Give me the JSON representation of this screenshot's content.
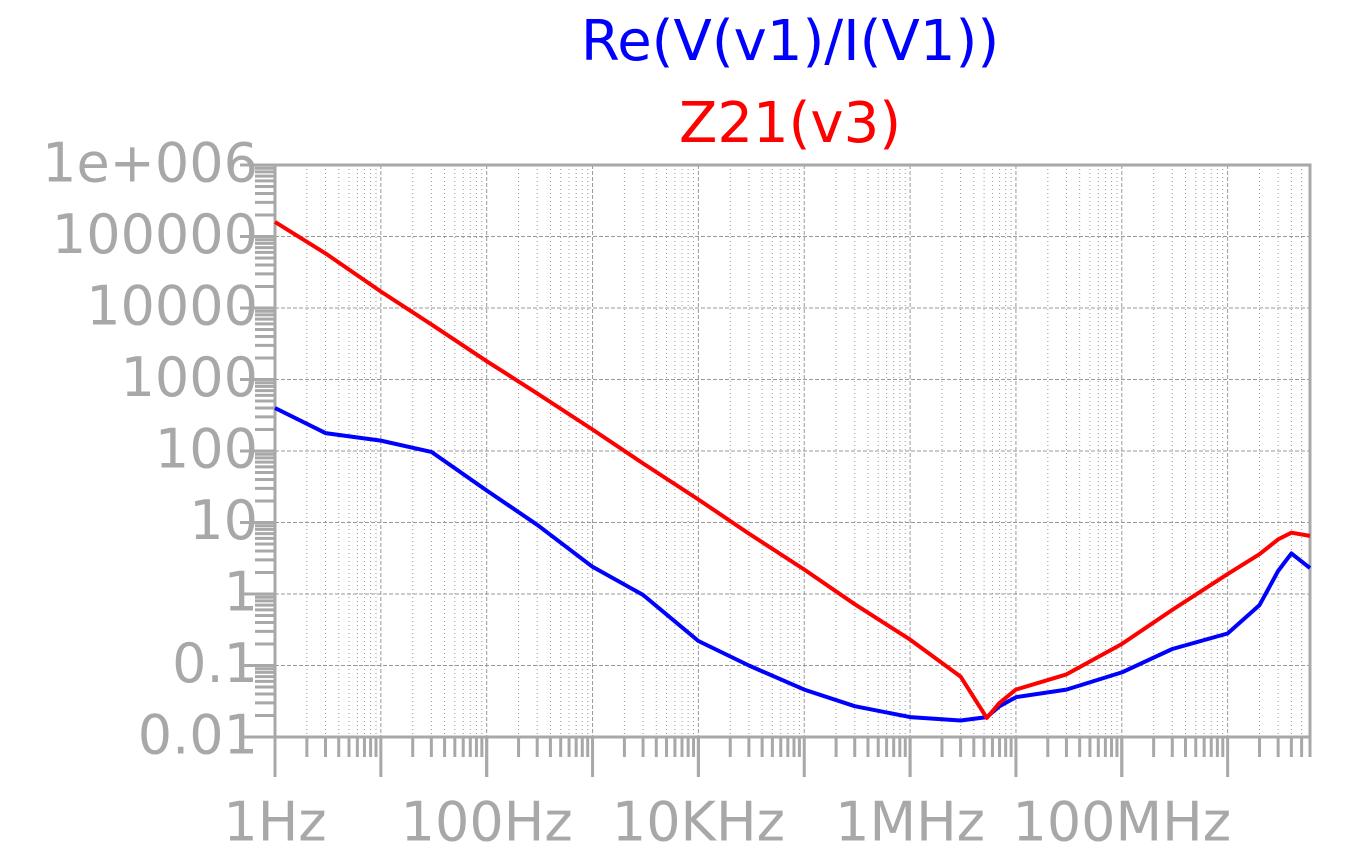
{
  "chart_data": {
    "type": "line",
    "xscale": "log",
    "yscale": "log",
    "grid": true,
    "legend": "top",
    "x": [
      1,
      3,
      10,
      30,
      100,
      300,
      1000,
      3000,
      10000,
      30000,
      100000,
      300000,
      1000000,
      3000000,
      5300000,
      7000000,
      10000000,
      30000000,
      100000000,
      300000000,
      1000000000,
      2000000000,
      3000000000,
      4000000000,
      6000000000
    ],
    "series": [
      {
        "name": "Re(V(v1)/I(V1))",
        "color": "#0000ff",
        "values": [
          400,
          178,
          140,
          97,
          28,
          9.3,
          2.4,
          0.97,
          0.22,
          0.1,
          0.046,
          0.027,
          0.019,
          0.017,
          0.019,
          0.027,
          0.036,
          0.046,
          0.08,
          0.17,
          0.28,
          0.7,
          2.1,
          3.7,
          2.3
        ]
      },
      {
        "name": "Z21(v3)",
        "color": "#ff0000",
        "values": [
          160000,
          58000,
          17000,
          5900,
          1800,
          640,
          200,
          67,
          21,
          7,
          2.2,
          0.72,
          0.23,
          0.07,
          0.0185,
          0.03,
          0.046,
          0.075,
          0.2,
          0.6,
          1.9,
          3.6,
          5.8,
          7.2,
          6.5
        ]
      }
    ],
    "xlim": [
      1,
      6000000000
    ],
    "xticks": [
      {
        "value": 1,
        "label": "1Hz"
      },
      {
        "value": 100,
        "label": "100Hz"
      },
      {
        "value": 10000,
        "label": "10KHz"
      },
      {
        "value": 1000000,
        "label": "1MHz"
      },
      {
        "value": 100000000,
        "label": "100MHz"
      }
    ],
    "ylim": [
      0.01,
      1000000
    ],
    "yticks": [
      {
        "value": 1000000,
        "label": "1e+006"
      },
      100000,
      10000,
      1000,
      100,
      10,
      1,
      0.1,
      0.01
    ]
  }
}
